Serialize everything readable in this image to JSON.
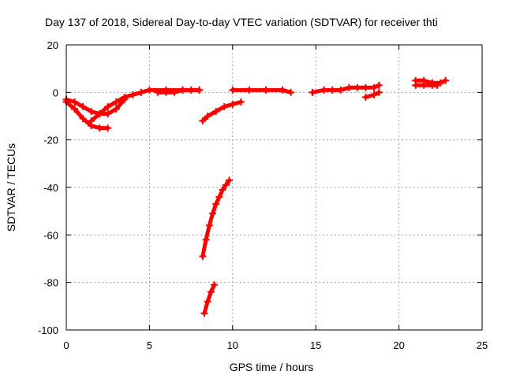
{
  "chart_data": {
    "type": "scatter",
    "title": "Day 137 of 2018, Sidereal Day-to-day VTEC variation (SDTVAR) for receiver thti",
    "xlabel": "GPS time / hours",
    "ylabel": "SDTVAR / TECUs",
    "xlim": [
      0,
      25
    ],
    "ylim": [
      -100,
      20
    ],
    "xticks": [
      0,
      5,
      10,
      15,
      20,
      25
    ],
    "yticks": [
      -100,
      -80,
      -60,
      -40,
      -20,
      0,
      20
    ],
    "x_tick_labels": [
      "0",
      "5",
      "10",
      "15",
      "20",
      "25"
    ],
    "y_tick_labels": [
      "-100",
      "-80",
      "-60",
      "-40",
      "-20",
      "0",
      "20"
    ],
    "grid": true,
    "legend": "none",
    "marker_color": "#ff0000",
    "series": [
      {
        "x": [
          0.0,
          0.5,
          1.0,
          1.5,
          2.0,
          2.5
        ],
        "y": [
          -4,
          -7,
          -11,
          -14,
          -15,
          -15
        ]
      },
      {
        "x": [
          0.0,
          0.5,
          1.0,
          1.5,
          2.0,
          2.5,
          3.0,
          3.5
        ],
        "y": [
          -3,
          -4,
          -6,
          -8,
          -9,
          -9,
          -7,
          -3
        ]
      },
      {
        "x": [
          1.5,
          2.0,
          2.5,
          3.0,
          3.5,
          4.0,
          4.5,
          5.0,
          6.0,
          7.0,
          8.0
        ],
        "y": [
          -12,
          -9,
          -6,
          -4,
          -2,
          -1,
          0,
          1,
          1,
          1,
          1
        ]
      },
      {
        "x": [
          5.5,
          6.0,
          6.5,
          7.0,
          7.5,
          8.0
        ],
        "y": [
          0,
          0,
          0,
          1,
          1,
          1
        ]
      },
      {
        "x": [
          8.2,
          8.5,
          9.0,
          9.5,
          10.0,
          10.5
        ],
        "y": [
          -12,
          -10,
          -8,
          -6,
          -5,
          -4
        ]
      },
      {
        "x": [
          8.2,
          8.4,
          8.6,
          8.8,
          9.0,
          9.2,
          9.4,
          9.6,
          9.8
        ],
        "y": [
          -69,
          -62,
          -56,
          -51,
          -47,
          -44,
          -41,
          -39,
          -37
        ]
      },
      {
        "x": [
          8.3,
          8.5,
          8.7,
          8.9
        ],
        "y": [
          -93,
          -88,
          -84,
          -81
        ]
      },
      {
        "x": [
          10.0,
          11.0,
          12.0,
          13.0,
          13.5
        ],
        "y": [
          1,
          1,
          1,
          1,
          0
        ]
      },
      {
        "x": [
          14.8,
          15.5,
          16.0,
          16.5,
          17.0,
          17.5,
          18.0,
          18.5,
          18.8
        ],
        "y": [
          0,
          1,
          1,
          1,
          2,
          2,
          2,
          2,
          3
        ]
      },
      {
        "x": [
          18.0,
          18.5,
          18.8
        ],
        "y": [
          -2,
          -1,
          0
        ]
      },
      {
        "x": [
          21.0,
          21.5,
          22.0,
          22.5,
          22.8
        ],
        "y": [
          5,
          5,
          4,
          4,
          5
        ]
      },
      {
        "x": [
          21.0,
          21.5,
          22.0,
          22.3
        ],
        "y": [
          3,
          3,
          3,
          3
        ]
      }
    ]
  }
}
